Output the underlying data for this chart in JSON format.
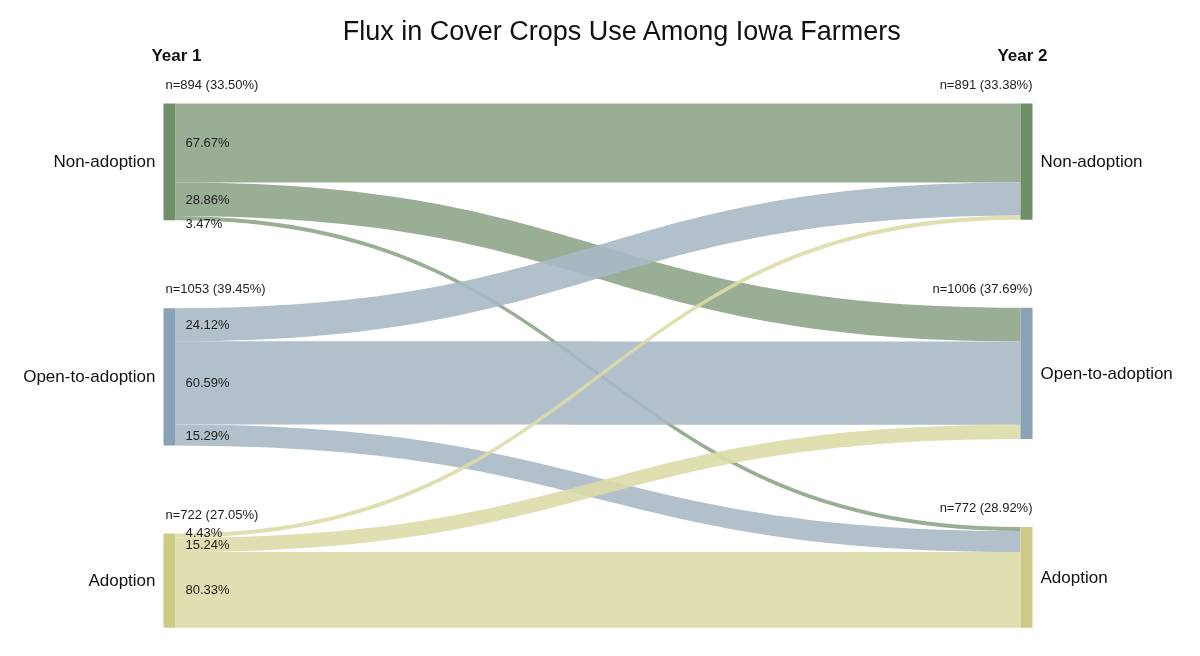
{
  "chart_data": {
    "type": "other",
    "title": "Flux in Cover Crops Use Among Iowa Farmers",
    "categories": [
      "Non-adoption",
      "Open-to-adoption",
      "Adoption"
    ],
    "y_categories": [
      "Year 1",
      "Year 2"
    ],
    "values": [
      894,
      1053,
      722
    ],
    "value_labels": [
      "n=894 (33.50%)",
      "n=1053 (39.45%)",
      "n=722 (27.05%)"
    ],
    "annotations": [
      {
        "text": "n=891 (33.38%)",
        "x": "Non-adoption"
      },
      {
        "text": "n=1006 (37.69%)",
        "x": "Open-to-adoption"
      },
      {
        "text": "n=772 (28.92%)",
        "x": "Adoption"
      }
    ],
    "colors": [
      "#6f8f68",
      "#8aa2b3",
      "#cccb85"
    ],
    "series": [
      {
        "colors": [
          "#8fa58a",
          "#a9b9c4",
          "#dcdba8"
        ],
        "values": [
          67.67,
          24.12,
          4.43
        ],
        "value_labels": [
          "67.67%",
          "24.12%",
          "4.43%"
        ]
      },
      {
        "colors": [
          "#8fa58a",
          "#a9b9c4",
          "#dcdba8"
        ],
        "values": [
          28.86,
          60.59,
          15.24
        ],
        "value_labels": [
          "28.86%",
          "60.59%",
          "15.24%"
        ]
      },
      {
        "colors": [
          "#8fa58a",
          "#a9b9c4",
          "#dcdba8"
        ],
        "values": [
          3.47,
          15.29,
          80.33
        ],
        "value_labels": [
          "3.47%",
          "15.29%",
          "80.33%"
        ]
      }
    ]
  }
}
